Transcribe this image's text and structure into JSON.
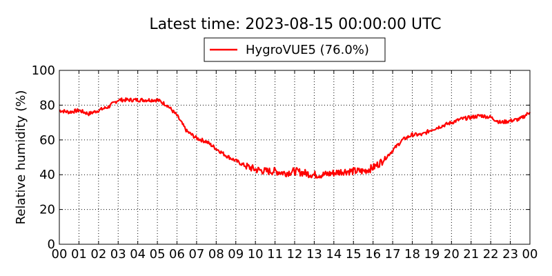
{
  "chart_data": {
    "type": "line",
    "title": "Latest time: 2023-08-15 00:00:00 UTC",
    "ylabel": "Relative humidity (%)",
    "xlabel": "",
    "xlim": [
      0,
      24
    ],
    "ylim": [
      0,
      100
    ],
    "x_ticks": [
      "00",
      "01",
      "02",
      "03",
      "04",
      "05",
      "06",
      "07",
      "08",
      "09",
      "10",
      "11",
      "12",
      "13",
      "14",
      "15",
      "16",
      "17",
      "18",
      "19",
      "20",
      "21",
      "22",
      "23",
      "00"
    ],
    "y_ticks": [
      "0",
      "20",
      "40",
      "60",
      "80",
      "100"
    ],
    "grid": true,
    "legend_position": "top-center",
    "series": [
      {
        "name": "HygroVUE5 (76.0%)",
        "color": "#ff0000",
        "x": [
          0,
          0.5,
          1,
          1.5,
          2,
          2.5,
          3,
          3.5,
          4,
          4.5,
          5,
          5.5,
          6,
          6.5,
          7,
          7.5,
          8,
          8.5,
          9,
          9.5,
          10,
          10.5,
          11,
          11.5,
          12,
          12.5,
          13,
          13.5,
          14,
          14.5,
          15,
          15.5,
          16,
          16.5,
          17,
          17.5,
          18,
          18.5,
          19,
          19.5,
          20,
          20.5,
          21,
          21.5,
          22,
          22.5,
          23,
          23.5,
          24
        ],
        "values": [
          77,
          76,
          77,
          75,
          77,
          79,
          83,
          83,
          83,
          83,
          83,
          80,
          74,
          65,
          61,
          59,
          55,
          51,
          48,
          45,
          43,
          42,
          42,
          41,
          42,
          41,
          40,
          40,
          41,
          42,
          42,
          42,
          44,
          48,
          54,
          60,
          63,
          63,
          66,
          68,
          70,
          72,
          73,
          74,
          73,
          70,
          71,
          72,
          76
        ]
      }
    ]
  }
}
